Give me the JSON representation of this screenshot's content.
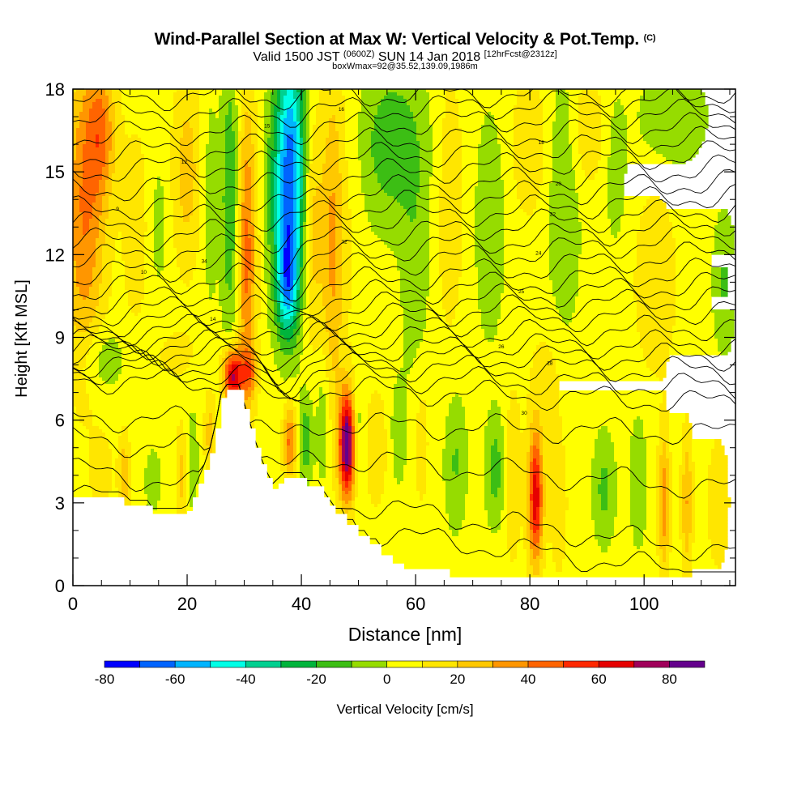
{
  "chart_data": {
    "type": "heatmap",
    "title": "Wind-Parallel Section at Max W: Vertical Velocity & Pot.Temp.",
    "title_mark": "(C)",
    "subtitle": {
      "prefix": "Valid 1500 JST",
      "zulu": "(0600Z)",
      "date": "SUN 14 Jan 2018",
      "forecast": "[12hrFcst@2312z]"
    },
    "subtitle2": "boxWmax=92@35.52,139.09,1986m",
    "xlabel": "Distance [nm]",
    "ylabel": "Height [Kft MSL]",
    "xlim": [
      0,
      116
    ],
    "ylim": [
      0,
      18
    ],
    "x_ticks": [
      "0",
      "20",
      "40",
      "60",
      "80",
      "100"
    ],
    "y_ticks": [
      "0",
      "3",
      "6",
      "9",
      "12",
      "15",
      "18"
    ],
    "grid": false,
    "colorbar": {
      "label": "Vertical Velocity [cm/s]",
      "placement": "bottom",
      "range": [
        -80,
        90
      ],
      "step": 10,
      "tick_labels": [
        "-80",
        "-60",
        "-40",
        "-20",
        "0",
        "20",
        "40",
        "60",
        "80"
      ],
      "colors": [
        "#0000ff",
        "#0064ff",
        "#00b4ff",
        "#00ffe6",
        "#00d090",
        "#00b43c",
        "#3cbe14",
        "#96dc00",
        "#ffff00",
        "#ffe600",
        "#ffc800",
        "#ff9600",
        "#ff6400",
        "#ff2800",
        "#e60000",
        "#a0005a",
        "#64008c"
      ]
    },
    "terrain_kft": {
      "x": [
        0,
        4,
        8,
        9,
        13,
        14,
        18,
        20,
        21,
        22,
        23,
        24,
        25,
        26,
        27,
        28,
        29,
        30,
        31,
        32,
        33,
        34,
        35,
        36,
        37,
        40,
        41,
        44,
        45,
        46,
        48,
        50,
        52,
        54,
        56,
        58,
        60,
        63,
        66,
        67,
        70,
        80,
        90,
        100,
        110,
        116
      ],
      "y": [
        3.2,
        3.2,
        3.2,
        2.9,
        2.9,
        2.6,
        2.6,
        2.7,
        3.2,
        3.7,
        4.2,
        4.8,
        5.7,
        6.8,
        7.1,
        7.1,
        7.1,
        6.4,
        5.7,
        5.0,
        4.4,
        3.9,
        3.5,
        3.7,
        3.9,
        3.9,
        3.6,
        3.2,
        2.9,
        2.6,
        2.2,
        1.8,
        1.5,
        1.1,
        0.8,
        0.6,
        0.6,
        0.6,
        0.3,
        0.3,
        0.3,
        0.3,
        0.3,
        0.3,
        0.3,
        0.3
      ]
    },
    "vertical_velocity_features": [
      {
        "x": 2,
        "y": 13.5,
        "rx": 3.5,
        "ry": 5.5,
        "w": 35
      },
      {
        "x": 5,
        "y": 16.5,
        "rx": 2.5,
        "ry": 2.5,
        "w": 30
      },
      {
        "x": 11,
        "y": 13,
        "rx": 2.5,
        "ry": 4,
        "w": 10
      },
      {
        "x": 15,
        "y": 13,
        "rx": 1.5,
        "ry": 2.5,
        "w": -10
      },
      {
        "x": 20,
        "y": 15,
        "rx": 2.5,
        "ry": 3.5,
        "w": 20
      },
      {
        "x": 24,
        "y": 14,
        "rx": 1.5,
        "ry": 4.5,
        "w": -10
      },
      {
        "x": 27.5,
        "y": 14,
        "rx": 1.5,
        "ry": 5,
        "w": -25
      },
      {
        "x": 30.5,
        "y": 12,
        "rx": 1.6,
        "ry": 5.5,
        "w": 38
      },
      {
        "x": 38,
        "y": 15,
        "rx": 2.6,
        "ry": 4.5,
        "w": -72
      },
      {
        "x": 37.5,
        "y": 11,
        "rx": 1.8,
        "ry": 2,
        "w": -45
      },
      {
        "x": 35,
        "y": 14,
        "rx": 1.5,
        "ry": 4,
        "w": -10
      },
      {
        "x": 42,
        "y": 13,
        "rx": 1.6,
        "ry": 4,
        "w": 20
      },
      {
        "x": 45.5,
        "y": 12.5,
        "rx": 2,
        "ry": 6,
        "w": 28
      },
      {
        "x": 49,
        "y": 14,
        "rx": 2,
        "ry": 5,
        "w": 5
      },
      {
        "x": 56,
        "y": 16,
        "rx": 6,
        "ry": 3,
        "w": -22
      },
      {
        "x": 60,
        "y": 11,
        "rx": 2.5,
        "ry": 4,
        "w": -12
      },
      {
        "x": 66,
        "y": 14,
        "rx": 2.5,
        "ry": 5,
        "w": 12
      },
      {
        "x": 73,
        "y": 13,
        "rx": 2.5,
        "ry": 4,
        "w": -15
      },
      {
        "x": 80,
        "y": 16,
        "rx": 3,
        "ry": 2.5,
        "w": 15
      },
      {
        "x": 86,
        "y": 14,
        "rx": 3,
        "ry": 5,
        "w": -14
      },
      {
        "x": 90,
        "y": 16.5,
        "rx": 3,
        "ry": 2,
        "w": 15
      },
      {
        "x": 95,
        "y": 15,
        "rx": 2,
        "ry": 3,
        "w": -10
      },
      {
        "x": 102,
        "y": 11,
        "rx": 3.5,
        "ry": 3.2,
        "w": 15
      },
      {
        "x": 105,
        "y": 17,
        "rx": 6,
        "ry": 1.8,
        "w": -14
      },
      {
        "x": 114,
        "y": 11,
        "rx": 2,
        "ry": 2.5,
        "w": -16
      },
      {
        "x": 83,
        "y": 7.5,
        "rx": 3,
        "ry": 2,
        "w": 10
      },
      {
        "x": 28,
        "y": 7.6,
        "rx": 1.7,
        "ry": 1.0,
        "w": 68
      },
      {
        "x": 31,
        "y": 7.7,
        "rx": 1.3,
        "ry": 0.8,
        "w": 25
      },
      {
        "x": 38,
        "y": 5.2,
        "rx": 1.2,
        "ry": 1.3,
        "w": 38
      },
      {
        "x": 40.8,
        "y": 5.3,
        "rx": 1.2,
        "ry": 1.6,
        "w": -22
      },
      {
        "x": 43.8,
        "y": 6,
        "rx": 1.2,
        "ry": 2.5,
        "w": -14
      },
      {
        "x": 48,
        "y": 5.1,
        "rx": 1.4,
        "ry": 1.9,
        "w": 86
      },
      {
        "x": 50,
        "y": 5.5,
        "rx": 1.2,
        "ry": 2,
        "w": -14
      },
      {
        "x": 53,
        "y": 5,
        "rx": 2,
        "ry": 2,
        "w": 15
      },
      {
        "x": 57,
        "y": 5.5,
        "rx": 1.5,
        "ry": 2,
        "w": -12
      },
      {
        "x": 61,
        "y": 5.5,
        "rx": 1.5,
        "ry": 3,
        "w": 10
      },
      {
        "x": 67,
        "y": 4.5,
        "rx": 2,
        "ry": 2.5,
        "w": -16
      },
      {
        "x": 74,
        "y": 4.2,
        "rx": 1.8,
        "ry": 2,
        "w": -20
      },
      {
        "x": 77,
        "y": 4,
        "rx": 1.5,
        "ry": 3,
        "w": 15
      },
      {
        "x": 81,
        "y": 3.2,
        "rx": 1.3,
        "ry": 2.4,
        "w": 62
      },
      {
        "x": 85,
        "y": 3,
        "rx": 1.5,
        "ry": 2.5,
        "w": 14
      },
      {
        "x": 93,
        "y": 3.5,
        "rx": 2,
        "ry": 2,
        "w": -18
      },
      {
        "x": 99,
        "y": 3.8,
        "rx": 1.5,
        "ry": 2.5,
        "w": -14
      },
      {
        "x": 103.5,
        "y": 3,
        "rx": 1,
        "ry": 2.5,
        "w": 32
      },
      {
        "x": 107.5,
        "y": 3,
        "rx": 1,
        "ry": 2.5,
        "w": 25
      },
      {
        "x": 113,
        "y": 3,
        "rx": 2,
        "ry": 2.5,
        "w": 12
      },
      {
        "x": 5,
        "y": 4.2,
        "rx": 2,
        "ry": 1.2,
        "w": 12
      },
      {
        "x": 9,
        "y": 4,
        "rx": 1,
        "ry": 1.5,
        "w": 22
      },
      {
        "x": 14,
        "y": 3.8,
        "rx": 1.5,
        "ry": 1.2,
        "w": -12
      },
      {
        "x": 19,
        "y": 4,
        "rx": 1,
        "ry": 1.8,
        "w": 18
      },
      {
        "x": 21,
        "y": 4.5,
        "rx": 1,
        "ry": 2,
        "w": -12
      },
      {
        "x": 24,
        "y": 5.5,
        "rx": 1,
        "ry": 1.5,
        "w": 20
      },
      {
        "x": 5,
        "y": 8.2,
        "rx": 4,
        "ry": 1.2,
        "w": -14
      },
      {
        "x": 18,
        "y": 8.4,
        "rx": 4,
        "ry": 1,
        "w": 8
      }
    ],
    "theta_contours": {
      "label_values": [
        "8",
        "9",
        "10",
        "12",
        "14",
        "15",
        "16",
        "18",
        "20",
        "22",
        "24",
        "25",
        "26",
        "28",
        "30",
        "32",
        "34"
      ],
      "left_heights_kft": [
        3.3,
        4.2,
        5.3,
        6.1,
        7.5,
        7.8,
        8.0,
        8.2,
        8.4,
        8.6,
        8.8,
        9.1,
        9.4,
        9.8,
        10.2,
        10.7,
        11.2,
        11.8,
        12.4,
        13.0,
        13.6,
        14.3,
        15.0,
        15.6,
        16.3,
        17.0,
        17.7
      ],
      "right_heights_kft": [
        0.3,
        1.2,
        3.5,
        5.5,
        6.6,
        7.2,
        7.8,
        8.3,
        8.8,
        9.4,
        10.0,
        10.5,
        11.0,
        11.5,
        12.1,
        12.7,
        13.2,
        13.7,
        14.2,
        14.7,
        15.2,
        15.7,
        16.2,
        16.7,
        17.2,
        17.6,
        17.9
      ]
    }
  }
}
